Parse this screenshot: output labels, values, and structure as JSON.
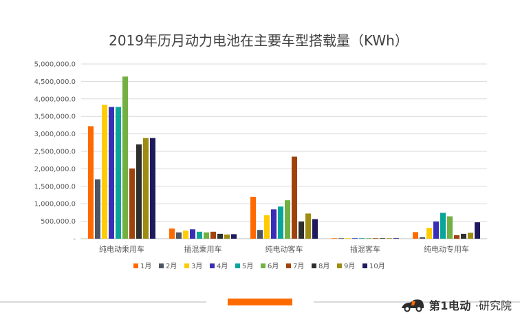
{
  "chart_data": {
    "type": "bar",
    "title": "2019年历月动力电池在主要车型搭载量（KWh）",
    "categories": [
      "纯电动乘用车",
      "插混乘用车",
      "纯电动客车",
      "插混客车",
      "纯电动专用车"
    ],
    "ylim": [
      0,
      5000000
    ],
    "yticks": [
      "-",
      "500,000.0",
      "1,000,000.0",
      "1,500,000.0",
      "2,000,000.0",
      "2,500,000.0",
      "3,000,000.0",
      "3,500,000.0",
      "4,000,000.0",
      "4,500,000.0",
      "5,000,000.0"
    ],
    "grid": true,
    "legend_position": "bottom",
    "series": [
      {
        "name": "1月",
        "color": "#FF6A00",
        "values": [
          3220000,
          290000,
          1200000,
          12000,
          190000
        ]
      },
      {
        "name": "2月",
        "color": "#4D5563",
        "values": [
          1700000,
          180000,
          250000,
          5000,
          40000
        ]
      },
      {
        "name": "3月",
        "color": "#FFCC00",
        "values": [
          3830000,
          230000,
          670000,
          10000,
          310000
        ]
      },
      {
        "name": "4月",
        "color": "#3B2EB6",
        "values": [
          3770000,
          270000,
          840000,
          15000,
          490000
        ]
      },
      {
        "name": "5月",
        "color": "#0AA59A",
        "values": [
          3770000,
          200000,
          920000,
          10000,
          740000
        ]
      },
      {
        "name": "6月",
        "color": "#72B043",
        "values": [
          4640000,
          180000,
          1100000,
          8000,
          640000
        ]
      },
      {
        "name": "7月",
        "color": "#A0430A",
        "values": [
          2010000,
          200000,
          2350000,
          12000,
          100000
        ]
      },
      {
        "name": "8月",
        "color": "#2F2F2F",
        "values": [
          2700000,
          140000,
          490000,
          10000,
          140000
        ]
      },
      {
        "name": "9月",
        "color": "#9E8B11",
        "values": [
          2880000,
          120000,
          720000,
          15000,
          170000
        ]
      },
      {
        "name": "10月",
        "color": "#1F1A5E",
        "values": [
          2880000,
          130000,
          560000,
          10000,
          470000
        ]
      }
    ]
  },
  "brand": {
    "name": "第1电动",
    "suffix": "·研究院"
  }
}
